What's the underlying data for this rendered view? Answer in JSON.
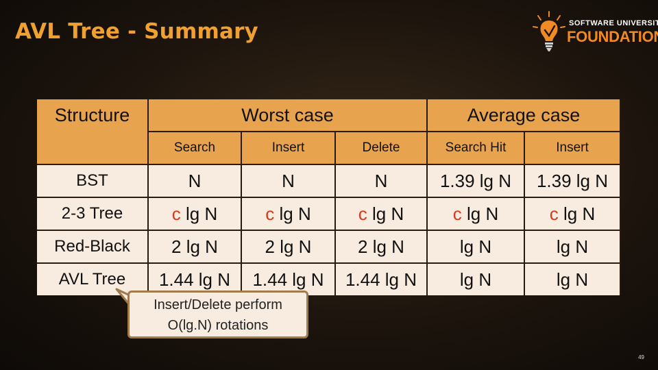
{
  "slide": {
    "title": "AVL Tree - Summary",
    "page_number": "49"
  },
  "logo": {
    "line1": "SOFTWARE UNIVERSITY",
    "line2": "FOUNDATION",
    "icon": "lightbulb-icon"
  },
  "table": {
    "structure_header": "Structure",
    "group_headers": [
      "Worst case",
      "Average case"
    ],
    "sub_headers": [
      "Search",
      "Insert",
      "Delete",
      "Search Hit",
      "Insert"
    ],
    "rows": [
      {
        "structure": "BST",
        "cells": [
          "N",
          "N",
          "N",
          "1.39 lg N",
          "1.39 lg N"
        ]
      },
      {
        "structure": "2-3 Tree",
        "cells": [
          "c lg N",
          "c lg N",
          "c lg N",
          "c lg N",
          "c lg N"
        ]
      },
      {
        "structure": "Red-Black",
        "cells": [
          "2 lg N",
          "2 lg N",
          "2 lg N",
          "lg N",
          "lg N"
        ]
      },
      {
        "structure": "AVL Tree",
        "cells": [
          "1.44 lg N",
          "1.44 lg N",
          "1.44 lg N",
          "lg N",
          "lg N"
        ]
      }
    ],
    "c_prefix": "c",
    "lg_n_suffix": " lg N"
  },
  "callout": {
    "line1": "Insert/Delete perform",
    "line2": "O(lg.N) rotations"
  },
  "colors": {
    "title": "#f0a030",
    "header_bg": "#e7a34d",
    "body_bg": "#f8ebe0",
    "accent_c": "#d73a1c",
    "logo_orange": "#f08a24"
  }
}
